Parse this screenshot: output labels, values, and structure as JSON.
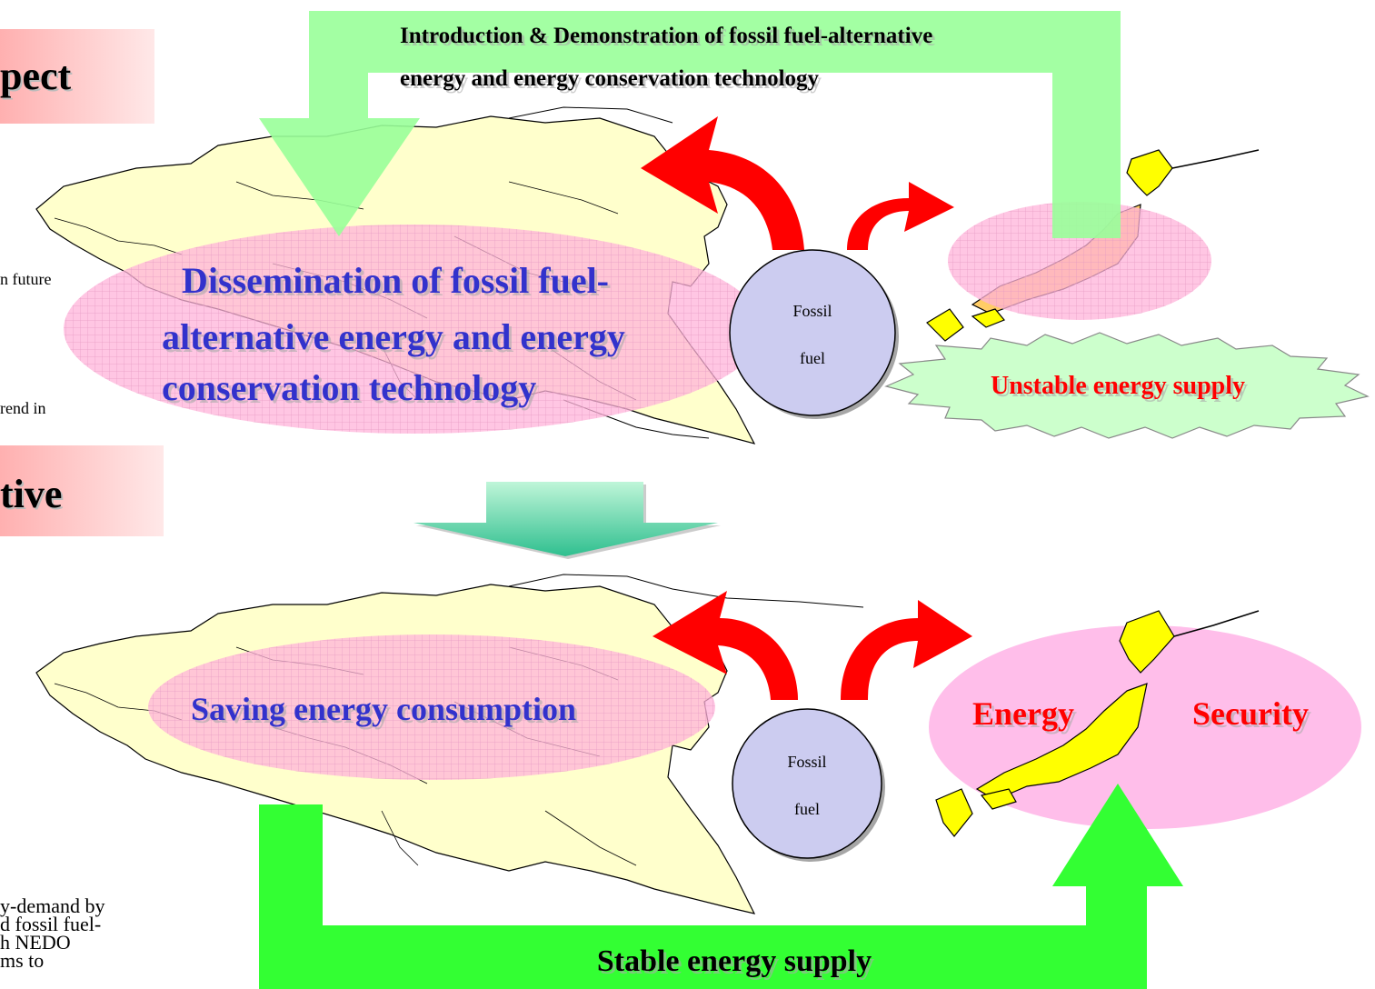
{
  "left_panel": {
    "heading_1": "pect",
    "heading_2": "tive",
    "fragments": [
      "n future",
      "rend in",
      "y-demand by",
      "d fossil fuel-",
      "h NEDO",
      "ms to"
    ]
  },
  "top_diagram": {
    "introduction_label_line1": "Introduction & Demonstration of fossil fuel-alternative",
    "introduction_label_line2": "energy and energy conservation technology",
    "dissemination_line1": "Dissemination of fossil fuel-",
    "dissemination_line2": "alternative energy and energy",
    "dissemination_line3": "conservation technology",
    "fossil_fuel_line1": "Fossil",
    "fossil_fuel_line2": "fuel",
    "unstable_label": "Unstable energy supply"
  },
  "bottom_diagram": {
    "saving_label": "Saving energy consumption",
    "fossil_fuel_line1": "Fossil",
    "fossil_fuel_line2": "fuel",
    "energy_label": "Energy",
    "security_label": "Security",
    "stable_label": "Stable energy supply"
  },
  "colors": {
    "green_arrow_light": "#99FF99",
    "green_arrow_bright": "#33FF33",
    "red_arrow": "#FF0000",
    "pink_zone": "#FFB3D9",
    "japan_yellow": "#FFFF00",
    "circle_fill": "#CCCCF0",
    "blue_text": "#3333CC",
    "red_text": "#FF0000",
    "map_fill": "#FFFFCC"
  }
}
